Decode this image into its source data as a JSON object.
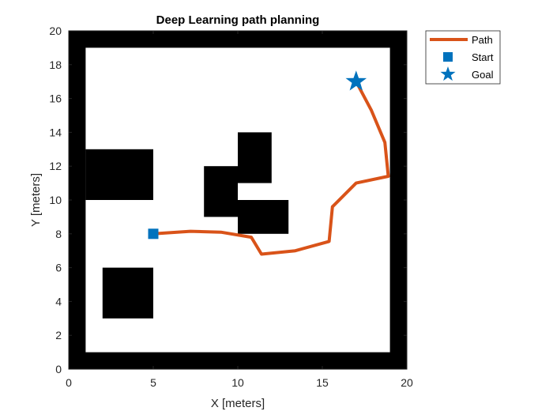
{
  "chart_data": {
    "type": "line",
    "title": "Deep Learning path planning",
    "xlabel": "X [meters]",
    "ylabel": "Y [meters]",
    "xlim": [
      0,
      20
    ],
    "ylim": [
      0,
      20
    ],
    "xticks": [
      "0",
      "5",
      "10",
      "15",
      "20"
    ],
    "yticks": [
      "0",
      "2",
      "4",
      "6",
      "8",
      "10",
      "12",
      "14",
      "16",
      "18",
      "20"
    ],
    "grid": false,
    "legend_position": "outside-top-right",
    "colors": {
      "path": "#D95319",
      "marker": "#0072BD",
      "obstacle": "#000000",
      "free": "#ffffff"
    },
    "occupancy_map": {
      "description_units": "meters",
      "obstacles": [
        {
          "x": [
            0,
            20
          ],
          "y": [
            0,
            1
          ]
        },
        {
          "x": [
            0,
            20
          ],
          "y": [
            19,
            20
          ]
        },
        {
          "x": [
            0,
            1
          ],
          "y": [
            0,
            20
          ]
        },
        {
          "x": [
            19,
            20
          ],
          "y": [
            0,
            20
          ]
        },
        {
          "x": [
            1,
            5
          ],
          "y": [
            10,
            13
          ]
        },
        {
          "x": [
            2,
            5
          ],
          "y": [
            3,
            6
          ]
        },
        {
          "x": [
            8,
            10
          ],
          "y": [
            9,
            12
          ]
        },
        {
          "x": [
            10,
            12
          ],
          "y": [
            11,
            14
          ]
        },
        {
          "x": [
            10,
            13
          ],
          "y": [
            8,
            10
          ]
        }
      ]
    },
    "series": [
      {
        "name": "Path",
        "x": [
          5.0,
          7.2,
          9.0,
          10.8,
          11.4,
          13.4,
          15.4,
          15.6,
          17.0,
          18.9,
          18.7,
          17.9,
          17.0
        ],
        "y": [
          8.0,
          8.15,
          8.1,
          7.8,
          6.8,
          7.0,
          7.55,
          9.6,
          11.0,
          11.4,
          13.4,
          15.3,
          17.0
        ]
      }
    ],
    "start": {
      "name": "Start",
      "x": 5,
      "y": 8
    },
    "goal": {
      "name": "Goal",
      "x": 17,
      "y": 17
    },
    "legend": {
      "entries": [
        "Path",
        "Start",
        "Goal"
      ]
    }
  }
}
